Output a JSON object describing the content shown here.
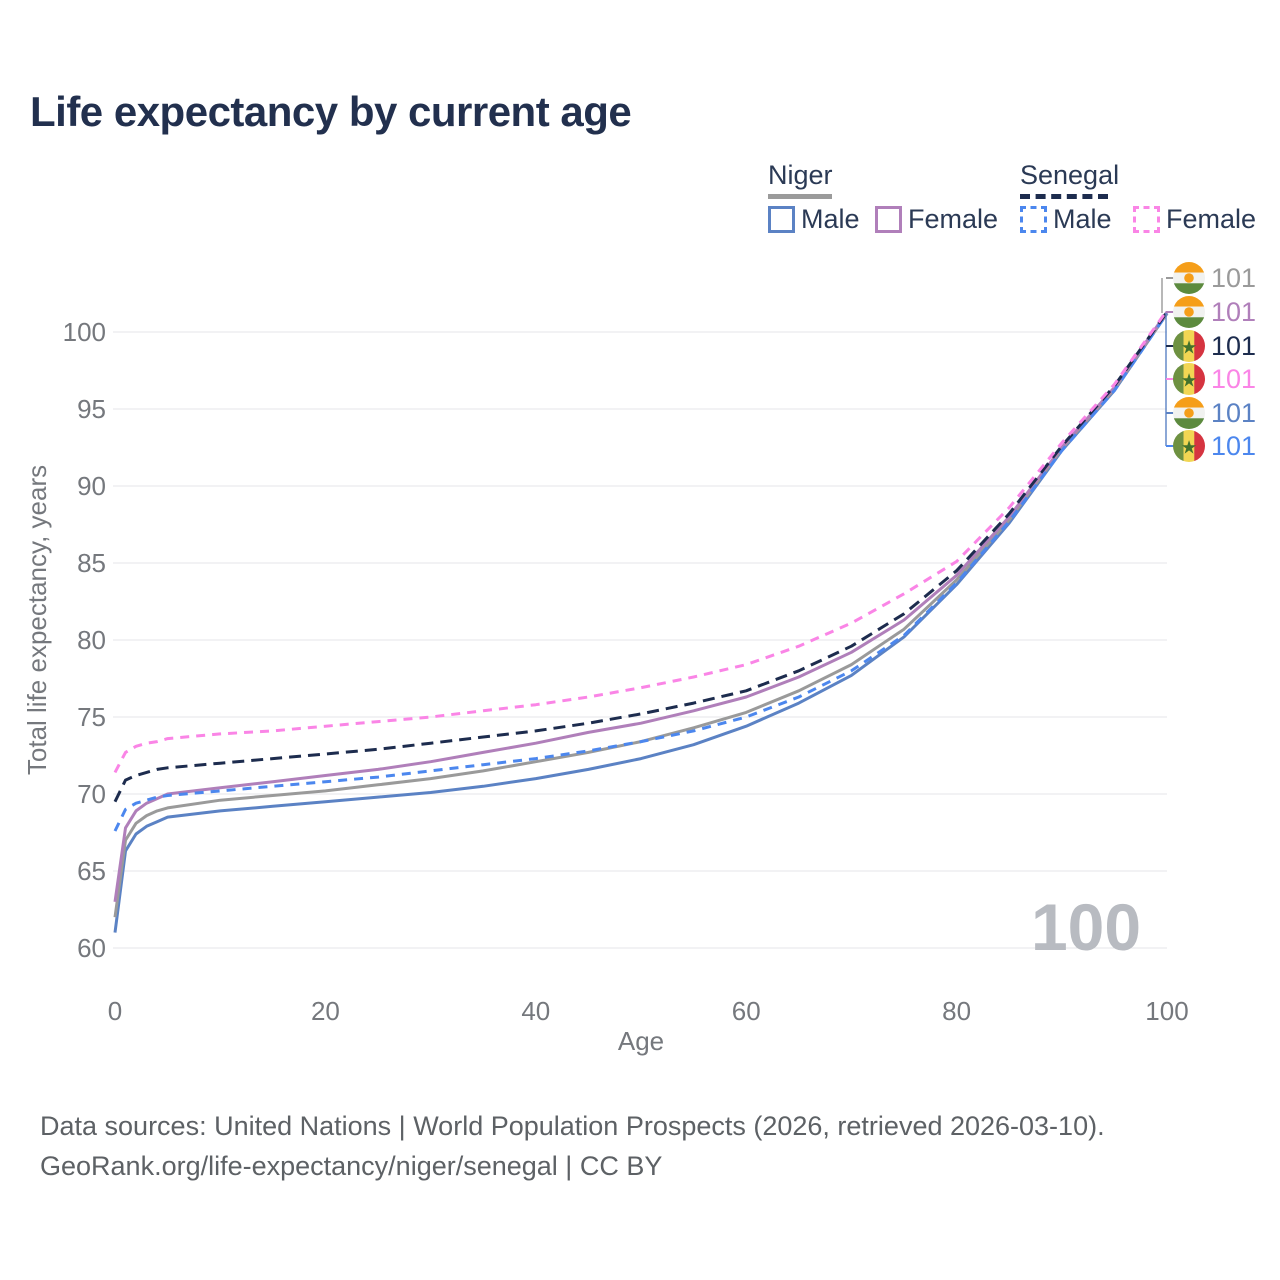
{
  "title": "Life expectancy by current age",
  "legend": {
    "niger": {
      "label": "Niger",
      "male": "Male",
      "female": "Female"
    },
    "senegal": {
      "label": "Senegal",
      "male": "Male",
      "female": "Female"
    }
  },
  "watermark": "100",
  "footer": {
    "line1": "Data sources: United Nations | World Population Prospects (2026, retrieved 2026-03-10).",
    "line2": "GeoRank.org/life-expectancy/niger/senegal | CC BY"
  },
  "colors": {
    "title_text": "#22304e",
    "axis_text": "#75787d",
    "grid": "#eaebed",
    "watermark": "#b8bbc1",
    "footer_text": "#5d6165"
  },
  "chart_data": {
    "type": "line",
    "title": "Life expectancy by current age",
    "xlabel": "Age",
    "ylabel": "Total life expectancy, years",
    "xlim": [
      0,
      100
    ],
    "ylim": [
      60,
      101.5
    ],
    "x_ticks": [
      0,
      20,
      40,
      60,
      80,
      100
    ],
    "y_ticks": [
      60,
      65,
      70,
      75,
      80,
      85,
      90,
      95,
      100
    ],
    "grid": "horizontal",
    "legend_position": "top-right",
    "x": [
      0,
      1,
      2,
      3,
      4,
      5,
      10,
      15,
      20,
      25,
      30,
      35,
      40,
      45,
      50,
      55,
      60,
      65,
      70,
      75,
      80,
      85,
      90,
      95,
      100
    ],
    "series": [
      {
        "id": "niger_male",
        "name": "Niger Male",
        "country": "Niger",
        "sex": "Male",
        "color": "#5b82c4",
        "dash": null,
        "flag": "niger",
        "end_label": "101",
        "end_label_row": 4,
        "values": [
          61.0,
          66.3,
          67.4,
          67.9,
          68.2,
          68.5,
          68.9,
          69.2,
          69.5,
          69.8,
          70.1,
          70.5,
          71.0,
          71.6,
          72.3,
          73.2,
          74.4,
          75.9,
          77.7,
          80.2,
          83.6,
          87.6,
          92.3,
          96.2,
          101.2
        ]
      },
      {
        "id": "niger_total",
        "name": "Niger (both sexes)",
        "country": "Niger",
        "sex": "Both",
        "color": "#9a9a9a",
        "dash": null,
        "flag": "niger",
        "end_label": "101",
        "end_label_row": 0,
        "values": [
          62.0,
          67.0,
          68.1,
          68.6,
          68.9,
          69.1,
          69.6,
          69.9,
          70.2,
          70.6,
          71.0,
          71.5,
          72.1,
          72.7,
          73.4,
          74.3,
          75.3,
          76.7,
          78.4,
          80.7,
          83.9,
          87.8,
          92.4,
          96.3,
          101.2
        ]
      },
      {
        "id": "niger_female",
        "name": "Niger Female",
        "country": "Niger",
        "sex": "Female",
        "color": "#b07fba",
        "dash": null,
        "flag": "niger",
        "end_label": "101",
        "end_label_row": 1,
        "values": [
          63.0,
          67.8,
          68.9,
          69.4,
          69.7,
          70.0,
          70.4,
          70.8,
          71.2,
          71.6,
          72.1,
          72.7,
          73.3,
          74.0,
          74.6,
          75.4,
          76.3,
          77.6,
          79.2,
          81.3,
          84.2,
          88.0,
          92.5,
          96.4,
          101.3
        ]
      },
      {
        "id": "senegal_male",
        "name": "Senegal Male",
        "country": "Senegal",
        "sex": "Male",
        "color": "#4c87ee",
        "dash": "9 7",
        "flag": "senegal",
        "end_label": "101",
        "end_label_row": 5,
        "values": [
          67.6,
          69.0,
          69.4,
          69.6,
          69.8,
          69.9,
          70.2,
          70.5,
          70.8,
          71.1,
          71.5,
          71.9,
          72.3,
          72.8,
          73.4,
          74.1,
          75.0,
          76.3,
          78.0,
          80.3,
          83.7,
          87.7,
          92.3,
          96.2,
          101.2
        ]
      },
      {
        "id": "senegal_total",
        "name": "Senegal (both sexes)",
        "country": "Senegal",
        "sex": "Both",
        "color": "#1d2c4e",
        "dash": "12 7",
        "flag": "senegal",
        "end_label": "101",
        "end_label_row": 2,
        "values": [
          69.5,
          70.9,
          71.2,
          71.4,
          71.6,
          71.7,
          72.0,
          72.3,
          72.6,
          72.9,
          73.3,
          73.7,
          74.1,
          74.6,
          75.2,
          75.9,
          76.7,
          78.0,
          79.6,
          81.7,
          84.5,
          88.2,
          92.6,
          96.5,
          101.3
        ]
      },
      {
        "id": "senegal_female",
        "name": "Senegal Female",
        "country": "Senegal",
        "sex": "Female",
        "color": "#fa85e6",
        "dash": "9 7",
        "flag": "senegal",
        "end_label": "101",
        "end_label_row": 3,
        "values": [
          71.4,
          72.7,
          73.1,
          73.3,
          73.4,
          73.6,
          73.9,
          74.1,
          74.4,
          74.7,
          75.0,
          75.4,
          75.8,
          76.3,
          76.9,
          77.6,
          78.4,
          79.6,
          81.1,
          83.0,
          85.1,
          88.6,
          92.8,
          96.6,
          101.4
        ]
      }
    ],
    "flag_colors": {
      "niger": {
        "band_top": "#f59e19",
        "band_mid": "#f1f2f0",
        "band_bottom": "#5c8a3e",
        "circle": "#f59e19"
      },
      "senegal": {
        "stripe_left": "#6e9141",
        "stripe_mid": "#f2d653",
        "stripe_right": "#d53440",
        "star": "#43722c"
      }
    }
  }
}
